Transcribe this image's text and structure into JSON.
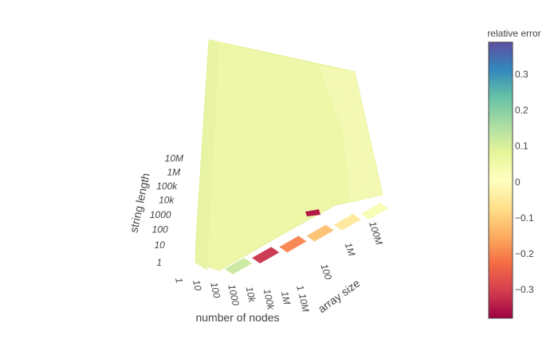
{
  "chart_data": {
    "type": "surface",
    "axes": {
      "x": {
        "label": "number of nodes",
        "scale": "log",
        "ticks": [
          "1",
          "10",
          "100",
          "1000",
          "10k",
          "100k",
          "1M",
          "10M"
        ]
      },
      "y": {
        "label": "array size",
        "scale": "log",
        "ticks": [
          "1",
          "100",
          "1M",
          "100M"
        ]
      },
      "z": {
        "label": "string length",
        "scale": "log",
        "ticks": [
          "1",
          "10",
          "100",
          "1000",
          "10k",
          "100k",
          "1M",
          "10M"
        ]
      }
    },
    "surface_value": "relative error",
    "dominant_value": 0.05,
    "bands": [
      {
        "array_size": "1",
        "value": 0.12
      },
      {
        "array_size": "10",
        "value": -0.32
      },
      {
        "array_size": "100",
        "value": -0.2
      },
      {
        "array_size": "1000",
        "value": -0.12
      },
      {
        "array_size": "10k",
        "value": -0.05
      },
      {
        "array_size": "100k",
        "value": 0.03
      }
    ],
    "colorbar": {
      "title": "relative error",
      "range": [
        -0.38,
        0.39
      ],
      "ticks": [
        "0.3",
        "0.2",
        "0.1",
        "0",
        "−0.1",
        "−0.2",
        "−0.3"
      ],
      "colorscale": [
        "#9e0142",
        "#d53e4f",
        "#f46d43",
        "#fdae61",
        "#fee08b",
        "#ffffbf",
        "#e6f598",
        "#abdda4",
        "#66c2a5",
        "#3288bd",
        "#5e4fa2"
      ]
    }
  }
}
